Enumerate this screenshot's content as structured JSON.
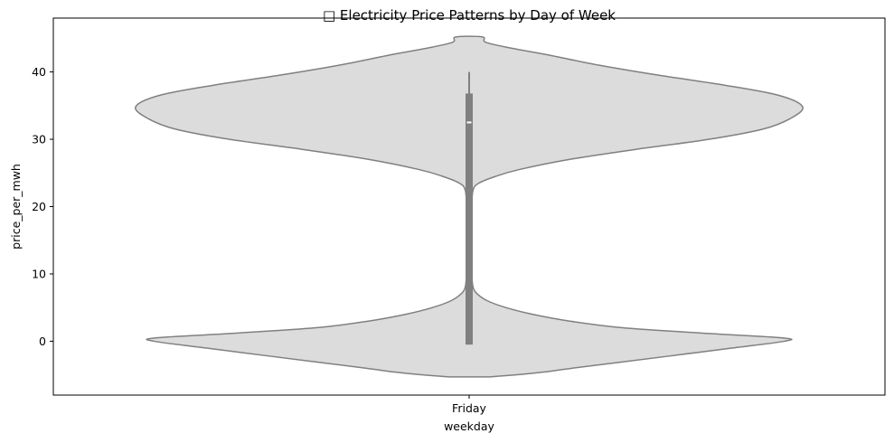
{
  "chart_data": {
    "type": "violin",
    "title": "□ Electricity Price Patterns by Day of Week",
    "xlabel": "weekday",
    "ylabel": "price_per_mwh",
    "categories": [
      "Friday"
    ],
    "ylim": [
      -8,
      48
    ],
    "yticks": [
      0,
      10,
      20,
      30,
      40
    ],
    "grid": false,
    "legend": "none",
    "violin": {
      "category": "Friday",
      "min": -5.3,
      "max": 45.2,
      "density_profile": [
        {
          "y": -5.3,
          "w": 0.06
        },
        {
          "y": -5.0,
          "w": 0.14
        },
        {
          "y": -4.6,
          "w": 0.22
        },
        {
          "y": -4.0,
          "w": 0.31
        },
        {
          "y": -3.2,
          "w": 0.44
        },
        {
          "y": -2.2,
          "w": 0.6
        },
        {
          "y": -1.0,
          "w": 0.79
        },
        {
          "y": 0.0,
          "w": 0.945
        },
        {
          "y": 0.5,
          "w": 0.94
        },
        {
          "y": 1.2,
          "w": 0.7
        },
        {
          "y": 2.0,
          "w": 0.46
        },
        {
          "y": 3.0,
          "w": 0.3
        },
        {
          "y": 4.0,
          "w": 0.19
        },
        {
          "y": 5.0,
          "w": 0.11
        },
        {
          "y": 6.0,
          "w": 0.055
        },
        {
          "y": 7.0,
          "w": 0.025
        },
        {
          "y": 8.0,
          "w": 0.012
        },
        {
          "y": 10.0,
          "w": 0.008
        },
        {
          "y": 15.0,
          "w": 0.008
        },
        {
          "y": 20.0,
          "w": 0.008
        },
        {
          "y": 22.5,
          "w": 0.012
        },
        {
          "y": 23.5,
          "w": 0.03
        },
        {
          "y": 24.5,
          "w": 0.08
        },
        {
          "y": 25.5,
          "w": 0.15
        },
        {
          "y": 27.0,
          "w": 0.3
        },
        {
          "y": 28.5,
          "w": 0.5
        },
        {
          "y": 30.0,
          "w": 0.72
        },
        {
          "y": 31.5,
          "w": 0.88
        },
        {
          "y": 33.0,
          "w": 0.96
        },
        {
          "y": 34.8,
          "w": 1.0
        },
        {
          "y": 36.5,
          "w": 0.93
        },
        {
          "y": 38.0,
          "w": 0.77
        },
        {
          "y": 39.5,
          "w": 0.57
        },
        {
          "y": 41.0,
          "w": 0.39
        },
        {
          "y": 42.5,
          "w": 0.24
        },
        {
          "y": 43.5,
          "w": 0.13
        },
        {
          "y": 44.4,
          "w": 0.05
        },
        {
          "y": 45.2,
          "w": 0.04
        }
      ],
      "box": {
        "q1": -0.5,
        "median": 32.5,
        "q3": 36.8
      },
      "whiskers": {
        "low": -0.5,
        "high": 40.0
      }
    },
    "colors": {
      "fill": "#dcdcdc",
      "edge": "#808080",
      "box": "#808080",
      "median": "#ffffff"
    }
  }
}
